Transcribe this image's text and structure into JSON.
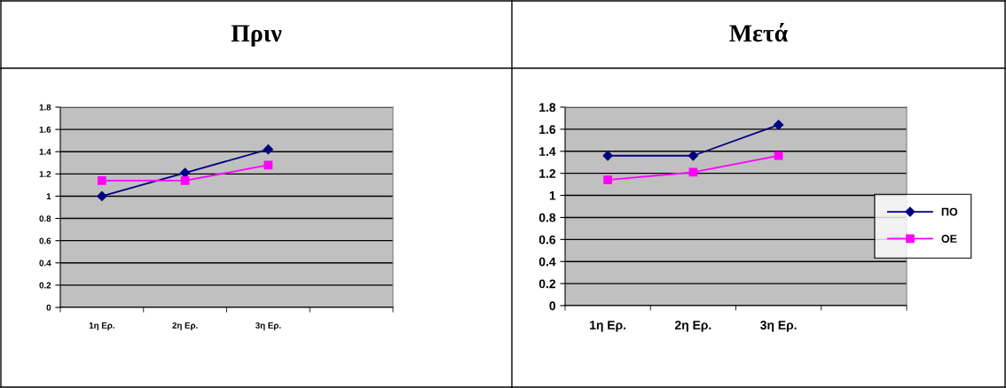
{
  "chart_data": [
    {
      "type": "line",
      "title": "Πριν",
      "categories": [
        "1η Ερ.",
        "2η Ερ.",
        "3η Ερ.",
        null
      ],
      "ylim": [
        0,
        1.8
      ],
      "yticks": [
        0,
        0.2,
        0.4,
        0.6,
        0.8,
        1,
        1.2,
        1.4,
        1.6,
        1.8
      ],
      "grid": "y",
      "legend": false,
      "series": [
        {
          "color": "#000080",
          "marker": "diamond",
          "values": [
            1.0,
            1.21,
            1.42,
            null
          ]
        },
        {
          "color": "#ff00ff",
          "marker": "square",
          "values": [
            1.14,
            1.14,
            1.28,
            null
          ]
        }
      ]
    },
    {
      "type": "line",
      "title": "Μετά",
      "categories": [
        "1η Ερ.",
        "2η Ερ.",
        "3η Ερ.",
        null
      ],
      "ylim": [
        0,
        1.8
      ],
      "yticks": [
        0,
        0.2,
        0.4,
        0.6,
        0.8,
        1,
        1.2,
        1.4,
        1.6,
        1.8
      ],
      "grid": "y",
      "legend": "right",
      "series": [
        {
          "name": "ΠΟ",
          "color": "#000080",
          "marker": "diamond",
          "values": [
            1.36,
            1.36,
            1.64,
            null
          ]
        },
        {
          "name": "ΟΕ",
          "color": "#ff00ff",
          "marker": "square",
          "values": [
            1.14,
            1.21,
            1.36,
            null
          ]
        }
      ]
    }
  ]
}
